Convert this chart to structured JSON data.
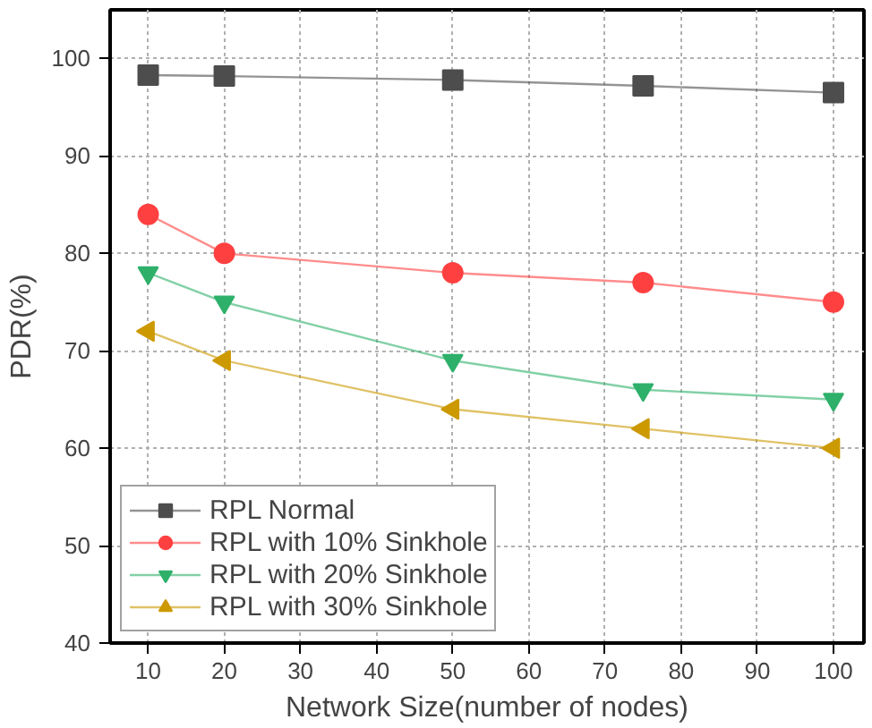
{
  "chart_data": {
    "type": "line",
    "xlabel": "Network Size(number of nodes)",
    "ylabel": "PDR(%)",
    "x": [
      10,
      20,
      50,
      75,
      100
    ],
    "series": [
      {
        "name": "RPL Normal",
        "color": "#4d4d4d",
        "marker": "square",
        "values": [
          98.3,
          98.2,
          97.8,
          97.2,
          96.5
        ]
      },
      {
        "name": "RPL with 10% Sinkhole",
        "color": "#ff4040",
        "marker": "circle",
        "values": [
          84,
          80,
          78,
          77,
          75
        ]
      },
      {
        "name": "RPL with 20% Sinkhole",
        "color": "#2eb06a",
        "marker": "triangle_down",
        "values": [
          78,
          75,
          69,
          66,
          65
        ]
      },
      {
        "name": "RPL with 30% Sinkhole",
        "color": "#cc9900",
        "marker": "triangle_left",
        "values": [
          72,
          69,
          64,
          62,
          60
        ]
      }
    ],
    "xlim": [
      5,
      104
    ],
    "ylim": [
      40,
      105
    ],
    "xticks": [
      10,
      20,
      30,
      40,
      50,
      60,
      70,
      80,
      90,
      100
    ],
    "yticks": [
      40,
      50,
      60,
      70,
      80,
      90,
      100
    ],
    "grid": true,
    "legend": "bottom left",
    "line_style": "solid"
  }
}
